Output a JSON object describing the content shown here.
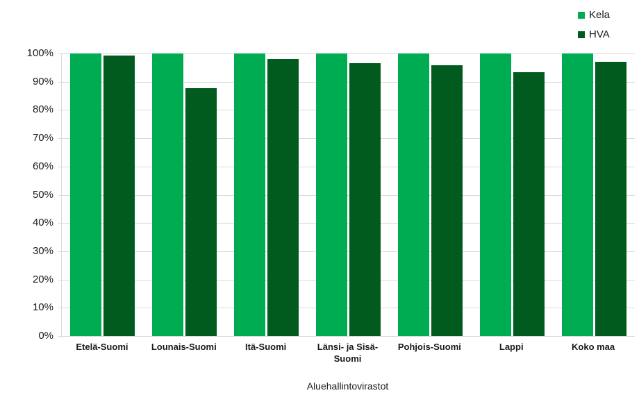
{
  "chart_data": {
    "type": "bar",
    "title": "",
    "xlabel": "Aluehallintovirastot",
    "ylabel": "",
    "categories": [
      "Etelä-Suomi",
      "Lounais-Suomi",
      "Itä-Suomi",
      "Länsi- ja Sisä-Suomi",
      "Pohjois-Suomi",
      "Lappi",
      "Koko maa"
    ],
    "series": [
      {
        "name": "Kela",
        "color": "#00AC52",
        "values": [
          100,
          100,
          100,
          100,
          100,
          100,
          100
        ]
      },
      {
        "name": "HVA",
        "color": "#015A1E",
        "values": [
          99.3,
          87.8,
          98,
          96.5,
          95.8,
          93.4,
          97
        ]
      }
    ],
    "ylim": [
      0,
      100
    ],
    "ytick_step": 10,
    "ytick_suffix": "%",
    "grid": true,
    "legend_position": "top-right",
    "grid_color": "#D9D9D9",
    "axis_color": "#D9D9D9",
    "text_color": "#1A1A1A",
    "background_color": "#FFFFFF"
  }
}
